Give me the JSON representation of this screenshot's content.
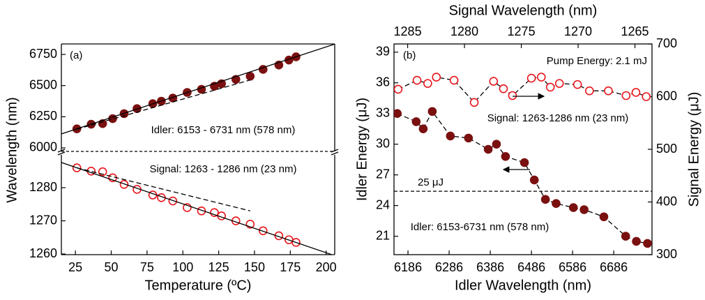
{
  "chart_data": [
    {
      "type": "scatter",
      "annotations": [
        {
          "text": "(a)",
          "color": "#000000"
        },
        {
          "text": "Idler: 6153 - 6731 nm (578 nm)",
          "color": "#7a1010"
        }
      ],
      "xlim": [
        15.2,
        206
      ],
      "ylim": [
        5972,
        6834
      ],
      "yticks": [
        6000,
        6250,
        6500,
        6750
      ],
      "series": [
        {
          "color": "#7a1010",
          "marker": "filled",
          "x": [
            26,
            36,
            44,
            51,
            59,
            68,
            79,
            85,
            93,
            103,
            113,
            122,
            127,
            137,
            147,
            156,
            167,
            174,
            179
          ],
          "values": [
            6153,
            6190,
            6195,
            6235,
            6275,
            6315,
            6355,
            6375,
            6400,
            6445,
            6470,
            6495,
            6515,
            6550,
            6575,
            6630,
            6665,
            6705,
            6731
          ]
        },
        {
          "color": "#000000",
          "line": "solid",
          "x": [
            15.2,
            206
          ],
          "values": [
            6112,
            6833
          ]
        },
        {
          "color": "#000000",
          "line": "dashed",
          "x": [
            26,
            147
          ],
          "values": [
            6150,
            6545
          ]
        }
      ]
    },
    {
      "type": "scatter",
      "xlabel": "Temperature (ºC)",
      "ylabel": "Wavelength (nm)",
      "annotations": [
        {
          "text": "Signal: 1263 - 1286 nm (23 nm)",
          "color": "#e8141a"
        }
      ],
      "xlim": [
        15.2,
        206
      ],
      "xticks": [
        25,
        50,
        75,
        100,
        125,
        150,
        175,
        200
      ],
      "ylim": [
        1259.8,
        1289.9
      ],
      "yticks": [
        1260,
        1270,
        1280
      ],
      "series": [
        {
          "color": "#e8141a",
          "marker": "open",
          "x": [
            26,
            36,
            44,
            51,
            59,
            68,
            79,
            85,
            93,
            103,
            113,
            122,
            127,
            137,
            147,
            156,
            167,
            174,
            179
          ],
          "values": [
            1286,
            1285,
            1284.8,
            1283,
            1281,
            1279.5,
            1277.8,
            1277,
            1276,
            1274,
            1273,
            1272.5,
            1271.5,
            1270,
            1269,
            1267,
            1265.5,
            1264.3,
            1263.5
          ]
        },
        {
          "color": "#000000",
          "line": "solid",
          "x": [
            15.2,
            206
          ],
          "values": [
            1287.6,
            1259.5
          ]
        },
        {
          "color": "#000000",
          "line": "dashed",
          "x": [
            26,
            147
          ],
          "values": [
            1286,
            1273
          ]
        }
      ]
    },
    {
      "type": "scatter",
      "xlabel": "Idler Wavelength (nm)",
      "x2label": "Signal Wavelength (nm)",
      "ylabel": "Idler Energy (μJ)",
      "y2label": "Signal Energy (μJ)",
      "annotations": [
        {
          "text": "(b)",
          "color": "#000000"
        },
        {
          "text": "Pump Energy: 2.1 mJ",
          "color": "#000000"
        },
        {
          "text": "Signal: 1263-1286 nm (23 nm)",
          "color": "#e8141a"
        },
        {
          "text": "Idler: 6153-6731 nm (578 nm)",
          "color": "#7a1010"
        }
      ],
      "xlim": [
        6152,
        6779
      ],
      "xticks": [
        6186,
        6286,
        6386,
        6486,
        6586,
        6686
      ],
      "x2lim": [
        1286.2,
        1263.5
      ],
      "x2ticks": [
        1285,
        1280,
        1275,
        1270,
        1265
      ],
      "ylim": [
        19.2,
        39.8
      ],
      "yticks": [
        21,
        24,
        27,
        30,
        33,
        36,
        39
      ],
      "y2lim": [
        300,
        700
      ],
      "y2ticks": [
        300,
        400,
        500,
        600,
        700
      ],
      "hline": {
        "value": 25.4,
        "label": "25 μJ"
      },
      "series": [
        {
          "color": "#7a1010",
          "marker": "filled",
          "line": "dashed",
          "line_color": "#000000",
          "axis": "y",
          "x": [
            6160,
            6206,
            6223,
            6245,
            6289,
            6333,
            6381,
            6401,
            6423,
            6469,
            6493,
            6520,
            6546,
            6588,
            6614,
            6662,
            6715,
            6741,
            6768
          ],
          "values": [
            33,
            32.2,
            31.5,
            33.2,
            30.8,
            30.6,
            29.5,
            30,
            28.8,
            28.2,
            26.5,
            24.6,
            24.2,
            23.8,
            23.6,
            22.9,
            21,
            20.5,
            20.3
          ]
        },
        {
          "color": "#e8141a",
          "marker": "open",
          "line": "dashed",
          "line_color": "#000000",
          "axis": "y2",
          "x": [
            6162,
            6208,
            6234,
            6255,
            6298,
            6347,
            6394,
            6418,
            6440,
            6486,
            6510,
            6532,
            6554,
            6598,
            6627,
            6673,
            6716,
            6740,
            6765
          ],
          "values": [
            614,
            631,
            625,
            637,
            631,
            589,
            629,
            615,
            602,
            635,
            637,
            618,
            625,
            623,
            611,
            611,
            602,
            608,
            600
          ]
        }
      ]
    }
  ]
}
